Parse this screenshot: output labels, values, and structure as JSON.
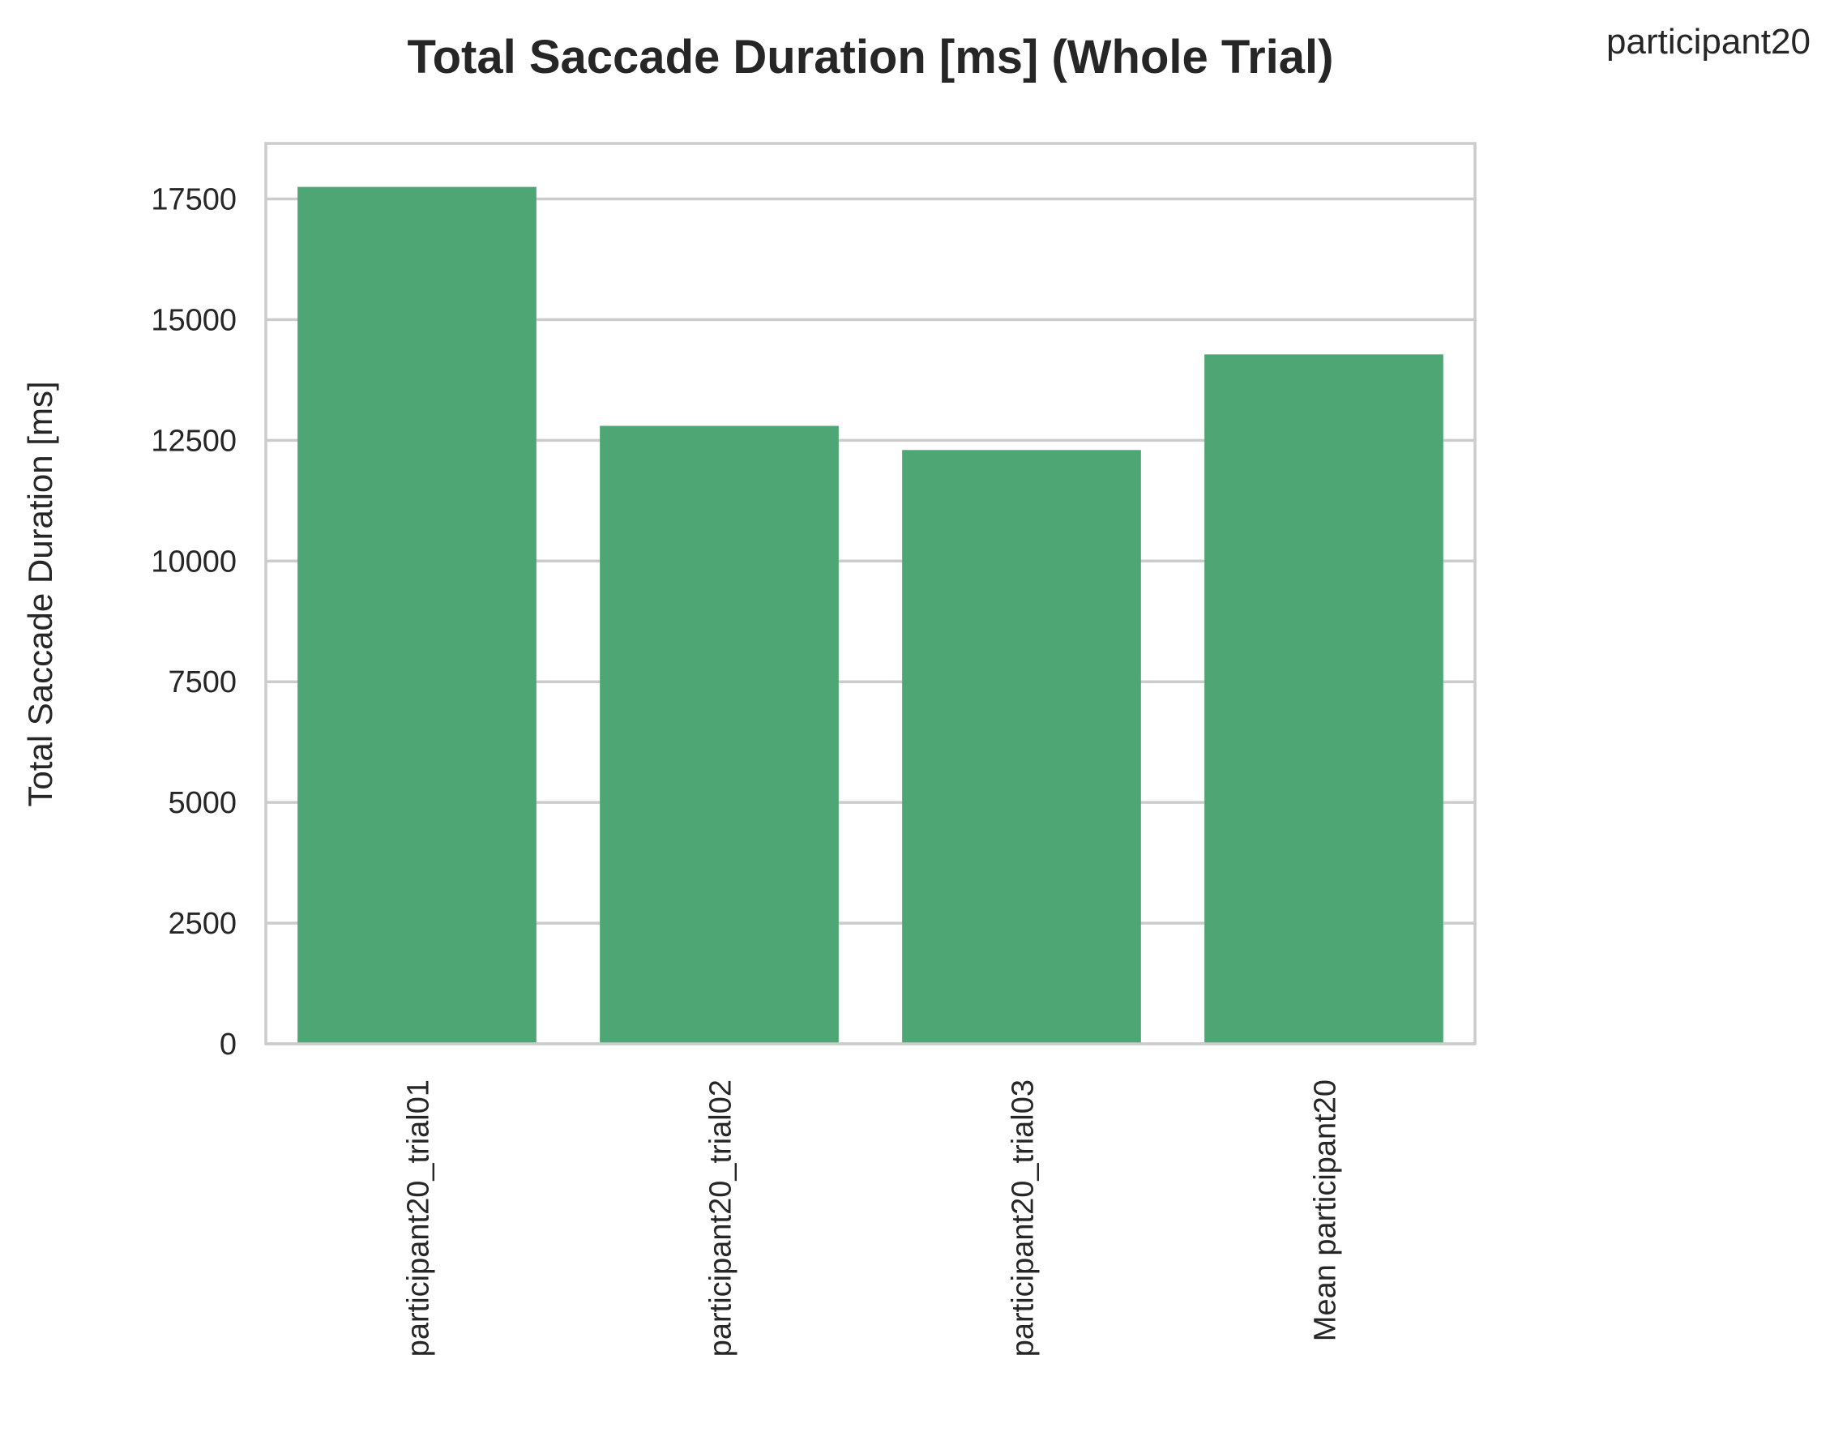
{
  "chart_data": {
    "type": "bar",
    "title": "Total Saccade Duration [ms] (Whole Trial)",
    "legend_label": "participant20",
    "legend_placement": "top-right",
    "xlabel": "",
    "ylabel": "Total Saccade Duration [ms]",
    "categories": [
      "participant20_trial01",
      "participant20_trial02",
      "participant20_trial03",
      "Mean participant20"
    ],
    "series": [
      {
        "values": [
          17750,
          12800,
          12300,
          14280
        ]
      }
    ],
    "yticks": [
      0,
      2500,
      5000,
      7500,
      10000,
      12500,
      15000,
      17500
    ],
    "ylim": [
      0,
      18650
    ],
    "grid": true,
    "bar_color": "#4ea674",
    "grid_color": "#cccccc",
    "text_color": "#262626"
  }
}
